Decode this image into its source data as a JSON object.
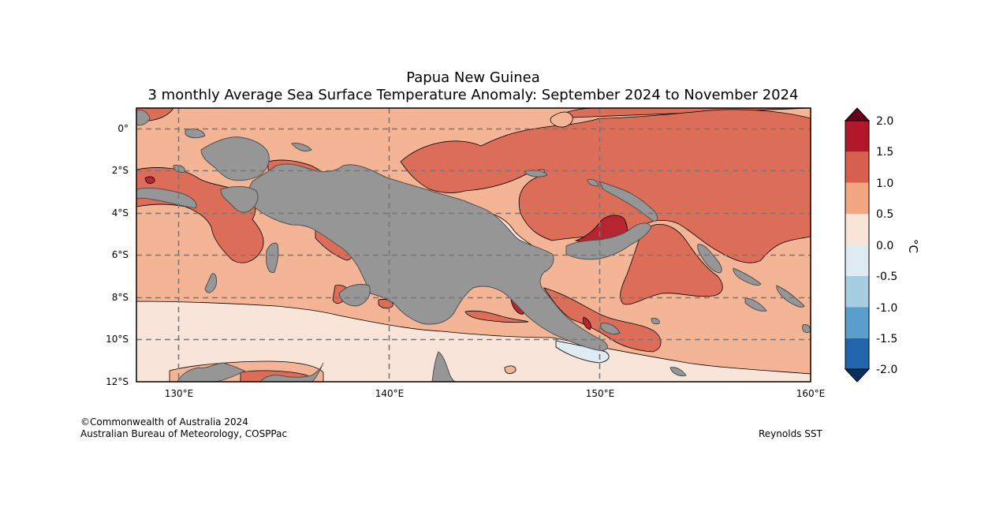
{
  "title": "Papua New Guinea",
  "subtitle": "3 monthly Average Sea Surface Temperature Anomaly: September 2024 to November 2024",
  "map": {
    "lon_range": [
      128,
      160
    ],
    "lat_range": [
      -12,
      1
    ],
    "lon_ticks": [
      "130°E",
      "140°E",
      "150°E",
      "160°E"
    ],
    "lat_ticks": [
      "0°",
      "2°S",
      "4°S",
      "6°S",
      "8°S",
      "10°S",
      "12°S"
    ],
    "gridlines": true,
    "land_color": "#969696"
  },
  "colorbar": {
    "unit": "°C",
    "ticks": [
      "2.0",
      "1.5",
      "1.0",
      "0.5",
      "0.0",
      "-0.5",
      "-1.0",
      "-1.5",
      "-2.0"
    ],
    "bands": [
      {
        "range": "> 2.0",
        "color": "#67001f"
      },
      {
        "range": "1.5 to 2.0",
        "color": "#b2182b"
      },
      {
        "range": "1.0 to 1.5",
        "color": "#d6604d"
      },
      {
        "range": "0.5 to 1.0",
        "color": "#f4a582"
      },
      {
        "range": "0.0 to 0.5",
        "color": "#f9e4d9"
      },
      {
        "range": "-0.5 to 0.0",
        "color": "#deebf3"
      },
      {
        "range": "-1.0 to -0.5",
        "color": "#a6cde2"
      },
      {
        "range": "-1.5 to -1.0",
        "color": "#5a9ecb"
      },
      {
        "range": "-2.0 to -1.5",
        "color": "#2166ac"
      },
      {
        "range": "< -2.0",
        "color": "#053061"
      }
    ]
  },
  "footer": {
    "copyright": "©Commonwealth of Australia 2024",
    "agency": "Australian Bureau of Meteorology, COSPPac",
    "source": "Reynolds SST"
  }
}
